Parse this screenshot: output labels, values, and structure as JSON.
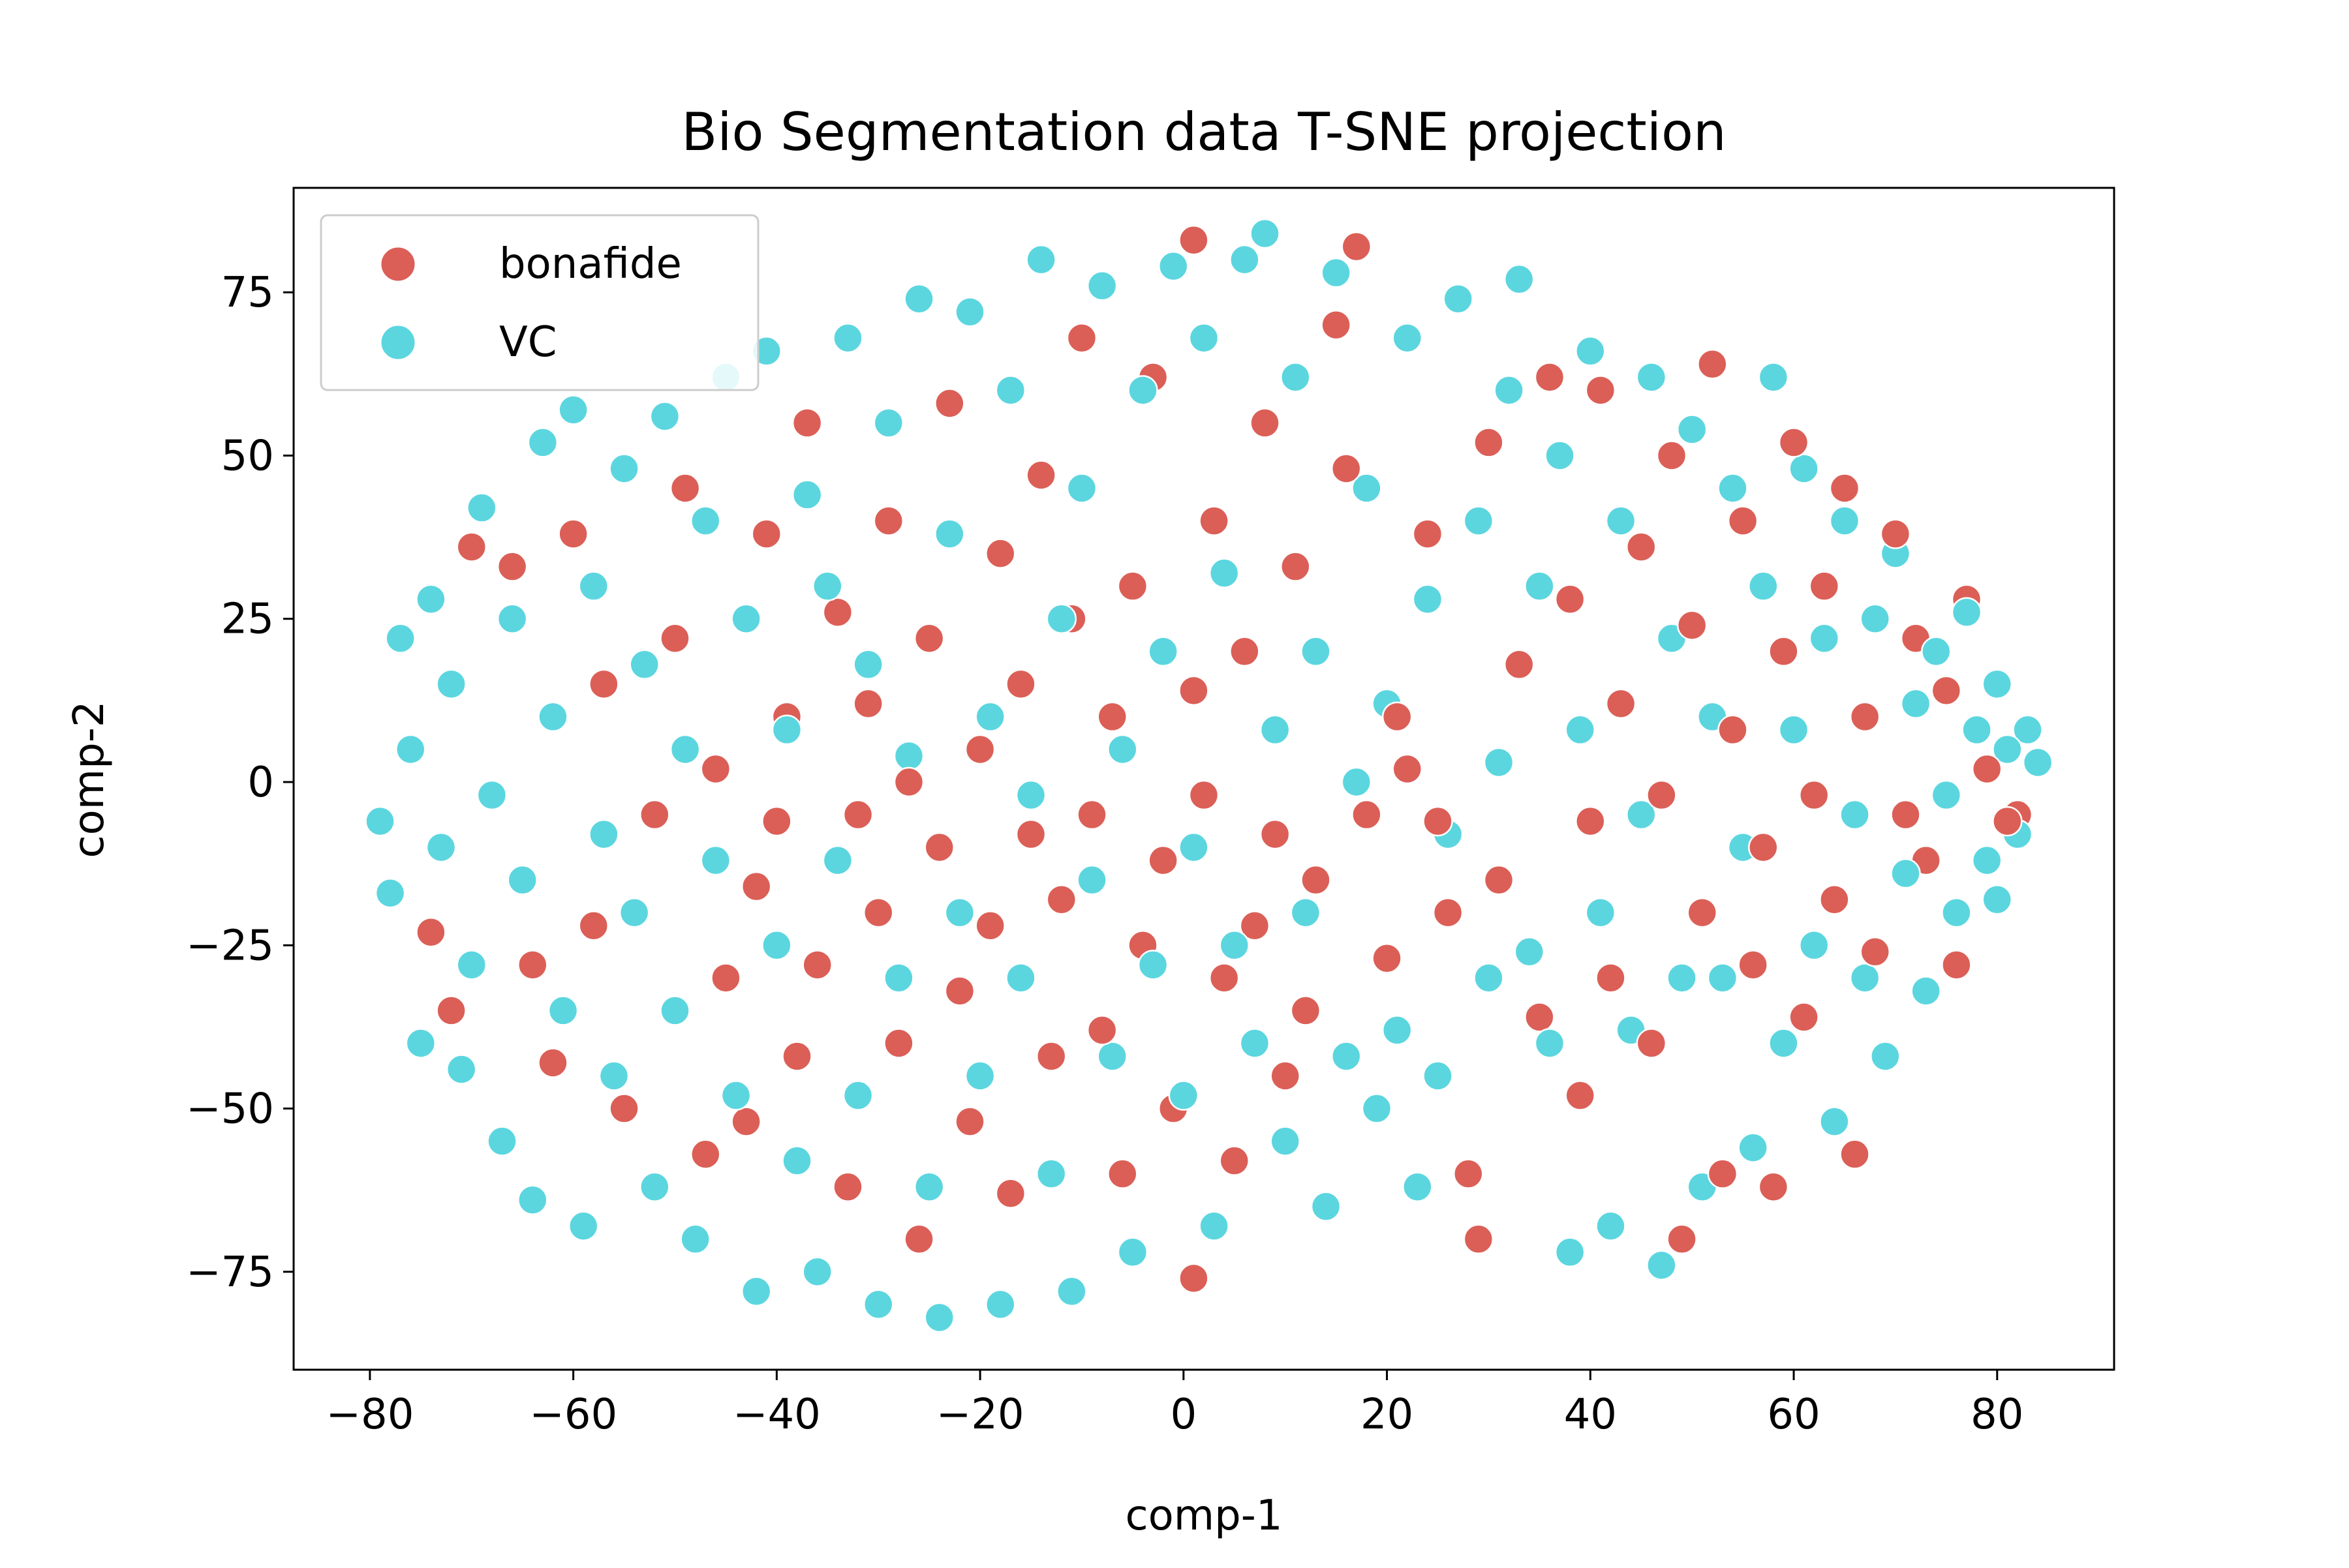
{
  "chart_data": {
    "type": "scatter",
    "title": "Bio Segmentation data T-SNE projection",
    "xlabel": "comp-1",
    "ylabel": "comp-2",
    "xlim": [
      -87.5,
      91.5
    ],
    "ylim": [
      -90,
      91
    ],
    "xticks": [
      -80,
      -60,
      -40,
      -20,
      0,
      20,
      40,
      60,
      80
    ],
    "yticks": [
      -75,
      -50,
      -25,
      0,
      25,
      50,
      75
    ],
    "xtick_labels": [
      "−80",
      "−60",
      "−40",
      "−20",
      "0",
      "20",
      "40",
      "60",
      "80"
    ],
    "ytick_labels": [
      "−75",
      "−50",
      "−25",
      "0",
      "25",
      "50",
      "75"
    ],
    "grid": false,
    "legend_position": "top-left",
    "series": [
      {
        "name": "bonafide",
        "color": "#db5f57",
        "points": [
          [
            -74,
            -23
          ],
          [
            -72,
            -35
          ],
          [
            -70,
            36
          ],
          [
            -66,
            33
          ],
          [
            -64,
            -28
          ],
          [
            -62,
            -43
          ],
          [
            -60,
            38
          ],
          [
            -58,
            -22
          ],
          [
            -57,
            15
          ],
          [
            -55,
            -50
          ],
          [
            -52,
            -5
          ],
          [
            -50,
            22
          ],
          [
            -49,
            45
          ],
          [
            -47,
            -57
          ],
          [
            -46,
            2
          ],
          [
            -45,
            -30
          ],
          [
            -43,
            -52
          ],
          [
            -42,
            -16
          ],
          [
            -41,
            38
          ],
          [
            -40,
            -6
          ],
          [
            -39,
            10
          ],
          [
            -38,
            -42
          ],
          [
            -37,
            55
          ],
          [
            -36,
            -28
          ],
          [
            -34,
            26
          ],
          [
            -33,
            -62
          ],
          [
            -32,
            -5
          ],
          [
            -31,
            12
          ],
          [
            -30,
            -20
          ],
          [
            -29,
            40
          ],
          [
            -28,
            -40
          ],
          [
            -27,
            0
          ],
          [
            -26,
            -70
          ],
          [
            -25,
            22
          ],
          [
            -24,
            -10
          ],
          [
            -23,
            58
          ],
          [
            -22,
            -32
          ],
          [
            -21,
            -52
          ],
          [
            -20,
            5
          ],
          [
            -19,
            -22
          ],
          [
            -18,
            35
          ],
          [
            -17,
            -63
          ],
          [
            -16,
            15
          ],
          [
            -15,
            -8
          ],
          [
            -14,
            47
          ],
          [
            -13,
            -42
          ],
          [
            -12,
            -18
          ],
          [
            -11,
            25
          ],
          [
            -10,
            68
          ],
          [
            -9,
            -5
          ],
          [
            -8,
            -38
          ],
          [
            -7,
            10
          ],
          [
            -6,
            -60
          ],
          [
            -5,
            30
          ],
          [
            -4,
            -25
          ],
          [
            -3,
            62
          ],
          [
            -2,
            -12
          ],
          [
            -1,
            -50
          ],
          [
            1,
            14
          ],
          [
            1,
            -76
          ],
          [
            1,
            83
          ],
          [
            2,
            -2
          ],
          [
            3,
            40
          ],
          [
            4,
            -30
          ],
          [
            5,
            -58
          ],
          [
            6,
            20
          ],
          [
            7,
            -22
          ],
          [
            8,
            55
          ],
          [
            9,
            -8
          ],
          [
            10,
            -45
          ],
          [
            11,
            33
          ],
          [
            12,
            -35
          ],
          [
            13,
            -15
          ],
          [
            15,
            70
          ],
          [
            16,
            48
          ],
          [
            17,
            82
          ],
          [
            18,
            -5
          ],
          [
            20,
            -27
          ],
          [
            21,
            10
          ],
          [
            22,
            2
          ],
          [
            24,
            38
          ],
          [
            25,
            -6
          ],
          [
            26,
            -20
          ],
          [
            28,
            -60
          ],
          [
            29,
            -70
          ],
          [
            30,
            52
          ],
          [
            31,
            -15
          ],
          [
            33,
            18
          ],
          [
            35,
            -36
          ],
          [
            36,
            62
          ],
          [
            38,
            28
          ],
          [
            39,
            -48
          ],
          [
            40,
            -6
          ],
          [
            41,
            60
          ],
          [
            42,
            -30
          ],
          [
            43,
            12
          ],
          [
            45,
            36
          ],
          [
            46,
            -40
          ],
          [
            47,
            -2
          ],
          [
            48,
            50
          ],
          [
            49,
            -70
          ],
          [
            50,
            24
          ],
          [
            51,
            -20
          ],
          [
            52,
            64
          ],
          [
            53,
            -60
          ],
          [
            54,
            8
          ],
          [
            55,
            40
          ],
          [
            56,
            -28
          ],
          [
            57,
            -10
          ],
          [
            58,
            -62
          ],
          [
            59,
            20
          ],
          [
            60,
            52
          ],
          [
            61,
            -36
          ],
          [
            62,
            -2
          ],
          [
            63,
            30
          ],
          [
            64,
            -18
          ],
          [
            65,
            45
          ],
          [
            66,
            -57
          ],
          [
            67,
            10
          ],
          [
            68,
            -26
          ],
          [
            70,
            38
          ],
          [
            71,
            -5
          ],
          [
            72,
            22
          ],
          [
            73,
            -12
          ],
          [
            75,
            14
          ],
          [
            76,
            -28
          ],
          [
            77,
            28
          ],
          [
            79,
            2
          ],
          [
            81,
            -6
          ],
          [
            82,
            -5
          ]
        ]
      },
      {
        "name": "VC",
        "color": "#5bd6df",
        "points": [
          [
            -79,
            -6
          ],
          [
            -78,
            -17
          ],
          [
            -77,
            22
          ],
          [
            -76,
            5
          ],
          [
            -75,
            -40
          ],
          [
            -74,
            28
          ],
          [
            -73,
            -10
          ],
          [
            -72,
            15
          ],
          [
            -71,
            -44
          ],
          [
            -70,
            -28
          ],
          [
            -69,
            42
          ],
          [
            -68,
            -2
          ],
          [
            -67,
            -55
          ],
          [
            -66,
            25
          ],
          [
            -65,
            -15
          ],
          [
            -64,
            -64
          ],
          [
            -63,
            52
          ],
          [
            -62,
            10
          ],
          [
            -61,
            -35
          ],
          [
            -60,
            57
          ],
          [
            -59,
            -68
          ],
          [
            -58,
            30
          ],
          [
            -57,
            -8
          ],
          [
            -56,
            -45
          ],
          [
            -55,
            48
          ],
          [
            -54,
            -20
          ],
          [
            -53,
            18
          ],
          [
            -52,
            -62
          ],
          [
            -51,
            56
          ],
          [
            -50,
            -35
          ],
          [
            -49,
            5
          ],
          [
            -48,
            -70
          ],
          [
            -47,
            40
          ],
          [
            -46,
            -12
          ],
          [
            -45,
            62
          ],
          [
            -44,
            -48
          ],
          [
            -43,
            25
          ],
          [
            -42,
            -78
          ],
          [
            -41,
            66
          ],
          [
            -40,
            -25
          ],
          [
            -39,
            8
          ],
          [
            -38,
            -58
          ],
          [
            -37,
            44
          ],
          [
            -36,
            -75
          ],
          [
            -35,
            30
          ],
          [
            -34,
            -12
          ],
          [
            -33,
            68
          ],
          [
            -32,
            -48
          ],
          [
            -31,
            18
          ],
          [
            -30,
            -80
          ],
          [
            -29,
            55
          ],
          [
            -28,
            -30
          ],
          [
            -27,
            4
          ],
          [
            -26,
            74
          ],
          [
            -25,
            -62
          ],
          [
            -24,
            -82
          ],
          [
            -23,
            38
          ],
          [
            -22,
            -20
          ],
          [
            -21,
            72
          ],
          [
            -20,
            -45
          ],
          [
            -19,
            10
          ],
          [
            -18,
            -80
          ],
          [
            -17,
            60
          ],
          [
            -16,
            -30
          ],
          [
            -15,
            -2
          ],
          [
            -14,
            80
          ],
          [
            -13,
            -60
          ],
          [
            -12,
            25
          ],
          [
            -11,
            -78
          ],
          [
            -10,
            45
          ],
          [
            -9,
            -15
          ],
          [
            -8,
            76
          ],
          [
            -7,
            -42
          ],
          [
            -6,
            5
          ],
          [
            -5,
            -72
          ],
          [
            -4,
            60
          ],
          [
            -3,
            -28
          ],
          [
            -2,
            20
          ],
          [
            -1,
            79
          ],
          [
            0,
            -48
          ],
          [
            1,
            -10
          ],
          [
            2,
            68
          ],
          [
            3,
            -68
          ],
          [
            4,
            32
          ],
          [
            5,
            -25
          ],
          [
            6,
            80
          ],
          [
            7,
            -40
          ],
          [
            8,
            84
          ],
          [
            9,
            8
          ],
          [
            10,
            -55
          ],
          [
            11,
            62
          ],
          [
            12,
            -20
          ],
          [
            13,
            20
          ],
          [
            14,
            -65
          ],
          [
            15,
            78
          ],
          [
            16,
            -42
          ],
          [
            17,
            0
          ],
          [
            18,
            45
          ],
          [
            19,
            -50
          ],
          [
            20,
            12
          ],
          [
            21,
            -38
          ],
          [
            22,
            68
          ],
          [
            23,
            -62
          ],
          [
            24,
            28
          ],
          [
            25,
            -45
          ],
          [
            26,
            -8
          ],
          [
            27,
            74
          ],
          [
            28,
            -60
          ],
          [
            29,
            40
          ],
          [
            30,
            -30
          ],
          [
            31,
            3
          ],
          [
            32,
            60
          ],
          [
            33,
            77
          ],
          [
            34,
            -26
          ],
          [
            35,
            30
          ],
          [
            36,
            -40
          ],
          [
            37,
            50
          ],
          [
            38,
            -72
          ],
          [
            39,
            8
          ],
          [
            40,
            66
          ],
          [
            41,
            -20
          ],
          [
            42,
            -68
          ],
          [
            43,
            40
          ],
          [
            44,
            -38
          ],
          [
            45,
            -5
          ],
          [
            46,
            62
          ],
          [
            47,
            -74
          ],
          [
            48,
            22
          ],
          [
            49,
            -30
          ],
          [
            50,
            54
          ],
          [
            51,
            -62
          ],
          [
            52,
            10
          ],
          [
            53,
            -30
          ],
          [
            54,
            45
          ],
          [
            55,
            -10
          ],
          [
            56,
            -56
          ],
          [
            57,
            30
          ],
          [
            58,
            62
          ],
          [
            59,
            -40
          ],
          [
            60,
            8
          ],
          [
            61,
            48
          ],
          [
            62,
            -25
          ],
          [
            63,
            22
          ],
          [
            64,
            -52
          ],
          [
            65,
            40
          ],
          [
            66,
            -5
          ],
          [
            67,
            -30
          ],
          [
            68,
            25
          ],
          [
            69,
            -42
          ],
          [
            70,
            35
          ],
          [
            71,
            -14
          ],
          [
            72,
            12
          ],
          [
            73,
            -32
          ],
          [
            74,
            20
          ],
          [
            75,
            -2
          ],
          [
            76,
            -20
          ],
          [
            77,
            26
          ],
          [
            78,
            8
          ],
          [
            79,
            -12
          ],
          [
            80,
            15
          ],
          [
            80,
            -18
          ],
          [
            81,
            5
          ],
          [
            82,
            -8
          ],
          [
            83,
            8
          ],
          [
            84,
            3
          ]
        ]
      }
    ]
  }
}
